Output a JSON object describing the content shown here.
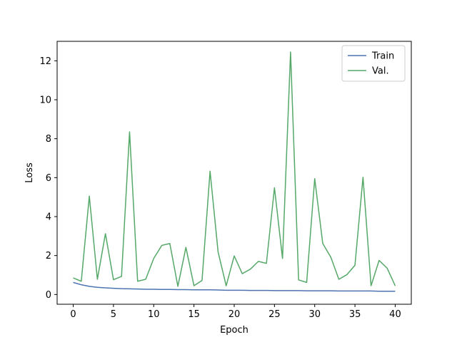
{
  "chart_data": {
    "type": "line",
    "title": "",
    "xlabel": "Epoch",
    "ylabel": "Loss",
    "xlim": [
      -2,
      42
    ],
    "ylim": [
      -0.5,
      13.0
    ],
    "xticks": [
      0,
      5,
      10,
      15,
      20,
      25,
      30,
      35,
      40
    ],
    "yticks": [
      0,
      2,
      4,
      6,
      8,
      10,
      12
    ],
    "grid": false,
    "legend_position": "top-right",
    "x": [
      0,
      1,
      2,
      3,
      4,
      5,
      6,
      7,
      8,
      9,
      10,
      11,
      12,
      13,
      14,
      15,
      16,
      17,
      18,
      19,
      20,
      21,
      22,
      23,
      24,
      25,
      26,
      27,
      28,
      29,
      30,
      31,
      32,
      33,
      34,
      35,
      36,
      37,
      38,
      39,
      40
    ],
    "series": [
      {
        "name": "Train",
        "color": "#4c72b0",
        "values": [
          0.62,
          0.5,
          0.42,
          0.37,
          0.34,
          0.32,
          0.3,
          0.29,
          0.28,
          0.27,
          0.27,
          0.26,
          0.26,
          0.25,
          0.25,
          0.24,
          0.24,
          0.24,
          0.23,
          0.22,
          0.22,
          0.22,
          0.21,
          0.21,
          0.21,
          0.2,
          0.2,
          0.2,
          0.2,
          0.19,
          0.19,
          0.19,
          0.19,
          0.18,
          0.18,
          0.18,
          0.18,
          0.18,
          0.17,
          0.17,
          0.17
        ]
      },
      {
        "name": "Val.",
        "color": "#55a868",
        "values": [
          0.85,
          0.68,
          5.05,
          0.78,
          3.12,
          0.76,
          0.93,
          8.35,
          0.68,
          0.78,
          1.85,
          2.52,
          2.62,
          0.42,
          2.42,
          0.45,
          0.72,
          6.33,
          2.18,
          0.45,
          1.98,
          1.07,
          1.3,
          1.7,
          1.6,
          5.48,
          1.85,
          12.45,
          0.75,
          0.62,
          5.95,
          2.62,
          1.92,
          0.78,
          1.02,
          1.5,
          6.02,
          0.45,
          1.75,
          1.35,
          0.45
        ]
      }
    ]
  }
}
